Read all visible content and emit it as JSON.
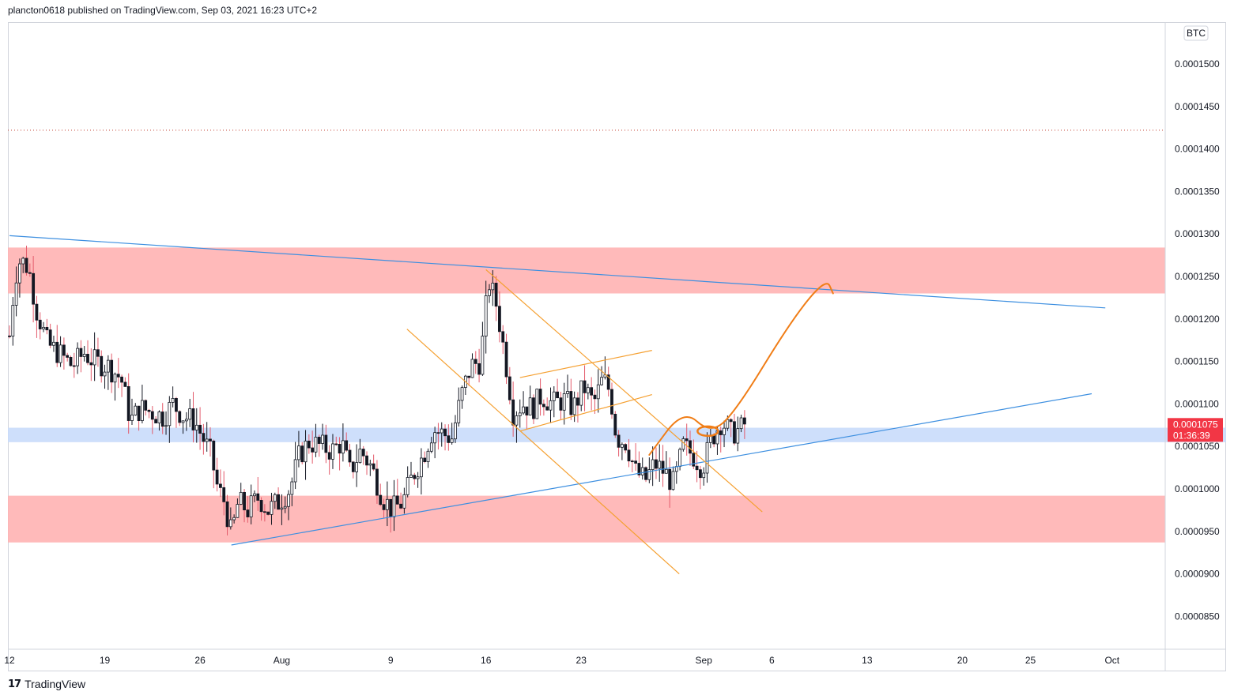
{
  "header": {
    "text": "plancton0618 published on TradingView.com, Sep 03, 2021 16:23 UTC+2"
  },
  "footer": {
    "brand": "TradingView",
    "logo_icon": "tradingview-logo-icon"
  },
  "colors": {
    "up_candle": "#ffffff",
    "down_candle": "#131722",
    "resistance_zone": "#ffb3b3",
    "support_zone": "#c9dcfb",
    "trendline": "#3d8fe0",
    "channel": "#f5a031",
    "projection": "#f07d16",
    "price_label": "#f23645"
  },
  "chart_data": {
    "type": "candlestick",
    "symbol_badge": "BTC",
    "ylim": [
      8.1e-05,
      0.000156
    ],
    "y_ticks": [
      "0.0001500",
      "0.0001450",
      "0.0001400",
      "0.0001350",
      "0.0001300",
      "0.0001250",
      "0.0001200",
      "0.0001150",
      "0.0001100",
      "0.0001050",
      "0.0001000",
      "0.0000950",
      "0.0000900",
      "0.0000850"
    ],
    "y_tick_values": [
      0.00015,
      0.000145,
      0.00014,
      0.000135,
      0.00013,
      0.000125,
      0.00012,
      0.000115,
      0.00011,
      0.000105,
      0.0001,
      9.5e-05,
      9e-05,
      8.5e-05
    ],
    "x_ticks": [
      {
        "label": "12",
        "day": 0
      },
      {
        "label": "19",
        "day": 7
      },
      {
        "label": "26",
        "day": 14
      },
      {
        "label": "Aug",
        "day": 20
      },
      {
        "label": "9",
        "day": 28
      },
      {
        "label": "16",
        "day": 35
      },
      {
        "label": "23",
        "day": 42
      },
      {
        "label": "Sep",
        "day": 51
      },
      {
        "label": "6",
        "day": 56
      },
      {
        "label": "13",
        "day": 63
      },
      {
        "label": "20",
        "day": 70
      },
      {
        "label": "25",
        "day": 75
      },
      {
        "label": "Oct",
        "day": 81
      }
    ],
    "last_price": {
      "value": "0.0001075",
      "countdown": "01:36:39",
      "numeric": 0.0001075
    },
    "dotted_level": 0.0001422,
    "zones": [
      {
        "name": "upper-resistance-zone",
        "low": 0.000123,
        "high": 0.0001284,
        "color": "resistance"
      },
      {
        "name": "mid-support-zone",
        "low": 0.0001055,
        "high": 0.0001072,
        "color": "support"
      },
      {
        "name": "lower-support-zone",
        "low": 9.37e-05,
        "high": 9.92e-05,
        "color": "resistance"
      }
    ],
    "trendlines": [
      {
        "name": "descending-trendline",
        "points": [
          [
            0,
            0.0001298
          ],
          [
            80.5,
            0.0001213
          ]
        ],
        "color": "trendline"
      },
      {
        "name": "ascending-trendline",
        "points": [
          [
            16.3,
            9.34e-05
          ],
          [
            79.5,
            0.0001112
          ]
        ],
        "color": "trendline"
      }
    ],
    "channels": [
      {
        "name": "falling-channel-upper",
        "points": [
          [
            35,
            0.0001258
          ],
          [
            55.3,
            9.73e-05
          ]
        ]
      },
      {
        "name": "falling-channel-lower",
        "points": [
          [
            29.2,
            0.0001188
          ],
          [
            49.2,
            9e-05
          ]
        ]
      },
      {
        "name": "flag-upper",
        "points": [
          [
            37.5,
            0.0001131
          ],
          [
            47.2,
            0.0001163
          ]
        ]
      },
      {
        "name": "flag-lower",
        "points": [
          [
            37.5,
            0.0001068
          ],
          [
            47.2,
            0.0001111
          ]
        ]
      }
    ],
    "projection_path": [
      [
        47.0,
        0.000104
      ],
      [
        49.5,
        0.0001094
      ],
      [
        51.5,
        0.0001065
      ],
      [
        53.3,
        0.000109
      ],
      [
        57.5,
        0.00012
      ],
      [
        60.0,
        0.0001248
      ],
      [
        60.5,
        0.000123
      ]
    ],
    "price_path": [
      [
        0,
        0.000118
      ],
      [
        0.4,
        0.000125
      ],
      [
        0.8,
        0.000127
      ],
      [
        1.4,
        0.000126
      ],
      [
        2.0,
        0.000121
      ],
      [
        2.8,
        0.000117
      ],
      [
        3.6,
        0.000116
      ],
      [
        4.6,
        0.0001145
      ],
      [
        5.5,
        0.000116
      ],
      [
        6.2,
        0.000115
      ],
      [
        7.2,
        0.0001145
      ],
      [
        8.2,
        0.000113
      ],
      [
        8.9,
        0.000108
      ],
      [
        9.6,
        0.0001095
      ],
      [
        10.5,
        0.000109
      ],
      [
        11.3,
        0.0001085
      ],
      [
        12.0,
        0.00011
      ],
      [
        12.8,
        0.0001085
      ],
      [
        13.6,
        0.000108
      ],
      [
        14.2,
        0.000106
      ],
      [
        14.8,
        0.000104
      ],
      [
        15.3,
        0.0001
      ],
      [
        15.8,
        9.85e-05
      ],
      [
        16.3,
        9.45e-05
      ],
      [
        16.8,
        9.85e-05
      ],
      [
        17.5,
        9.75e-05
      ],
      [
        18.3,
        9.9e-05
      ],
      [
        19.0,
        9.75e-05
      ],
      [
        19.8,
        9.85e-05
      ],
      [
        20.6,
        0.0001
      ],
      [
        21.3,
        0.000104
      ],
      [
        22.0,
        0.0001055
      ],
      [
        22.9,
        0.000105
      ],
      [
        23.7,
        0.0001045
      ],
      [
        24.4,
        0.0001055
      ],
      [
        25.0,
        0.000102
      ],
      [
        25.8,
        0.0001045
      ],
      [
        26.6,
        0.0001025
      ],
      [
        27.4,
        9.9e-05
      ],
      [
        28.1,
        9.75e-05
      ],
      [
        28.9,
        9.85e-05
      ],
      [
        29.6,
        0.0001015
      ],
      [
        30.4,
        0.000104
      ],
      [
        31.1,
        0.000107
      ],
      [
        31.8,
        0.0001065
      ],
      [
        32.5,
        0.000106
      ],
      [
        33.2,
        0.000111
      ],
      [
        33.9,
        0.0001145
      ],
      [
        34.6,
        0.000115
      ],
      [
        35.2,
        0.0001245
      ],
      [
        35.8,
        0.0001215
      ],
      [
        36.4,
        0.0001155
      ],
      [
        37.0,
        0.000109
      ],
      [
        37.7,
        0.00011
      ],
      [
        38.4,
        0.0001095
      ],
      [
        39.1,
        0.000111
      ],
      [
        39.9,
        0.00011
      ],
      [
        40.7,
        0.0001105
      ],
      [
        41.4,
        0.0001095
      ],
      [
        42.2,
        0.000112
      ],
      [
        42.9,
        0.00011
      ],
      [
        43.6,
        0.000113
      ],
      [
        44.1,
        0.0001115
      ],
      [
        44.6,
        0.000106
      ],
      [
        45.3,
        0.0001055
      ],
      [
        46.0,
        0.000102
      ],
      [
        46.7,
        0.000101
      ],
      [
        47.4,
        0.000103
      ],
      [
        48.1,
        0.000102
      ],
      [
        48.8,
        0.0001005
      ],
      [
        49.5,
        0.000105
      ],
      [
        50.2,
        0.000104
      ],
      [
        50.9,
        0.0001025
      ],
      [
        51.6,
        0.000106
      ],
      [
        52.3,
        0.000108
      ],
      [
        53.0,
        0.0001065
      ],
      [
        53.7,
        0.000107
      ],
      [
        54.2,
        0.000108
      ]
    ]
  }
}
